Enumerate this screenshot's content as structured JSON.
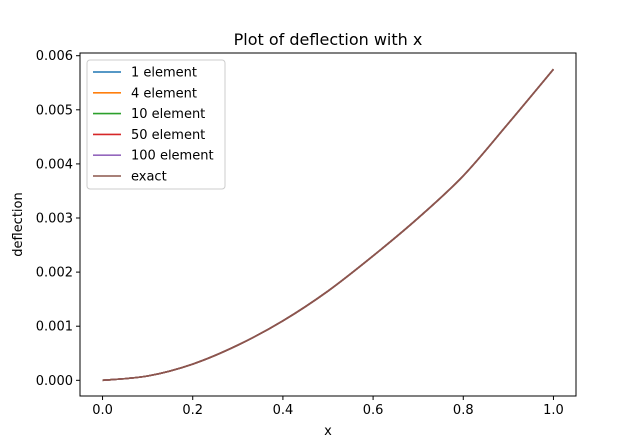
{
  "chart_data": {
    "type": "line",
    "title": "Plot of deflection with x",
    "xlabel": "x",
    "ylabel": "deflection",
    "xlim": [
      -0.05,
      1.05
    ],
    "ylim": [
      -0.00029,
      0.00605
    ],
    "grid": false,
    "legend_position": "top-left",
    "x_ticks": [
      0.0,
      0.2,
      0.4,
      0.6,
      0.8,
      1.0
    ],
    "x_tick_labels": [
      "0.0",
      "0.2",
      "0.4",
      "0.6",
      "0.8",
      "1.0"
    ],
    "y_ticks": [
      0.0,
      0.001,
      0.002,
      0.003,
      0.004,
      0.005,
      0.006
    ],
    "y_tick_labels": [
      "0.000",
      "0.001",
      "0.002",
      "0.003",
      "0.004",
      "0.005",
      "0.006"
    ],
    "x": [
      0.0,
      0.1,
      0.2,
      0.3,
      0.4,
      0.5,
      0.6,
      0.7,
      0.8,
      0.9,
      1.0
    ],
    "series": [
      {
        "name": "1 element",
        "color": "#1f77b4",
        "values": [
          0.0,
          8e-05,
          0.0003,
          0.00065,
          0.0011,
          0.00165,
          0.0023,
          0.003,
          0.00378,
          0.00475,
          0.00575
        ]
      },
      {
        "name": "4 element",
        "color": "#ff7f0e",
        "values": [
          0.0,
          8e-05,
          0.0003,
          0.00065,
          0.0011,
          0.00165,
          0.0023,
          0.003,
          0.00378,
          0.00475,
          0.00575
        ]
      },
      {
        "name": "10 element",
        "color": "#2ca02c",
        "values": [
          0.0,
          8e-05,
          0.0003,
          0.00065,
          0.0011,
          0.00165,
          0.0023,
          0.003,
          0.00378,
          0.00475,
          0.00575
        ]
      },
      {
        "name": "50 element",
        "color": "#d62728",
        "values": [
          0.0,
          8e-05,
          0.0003,
          0.00065,
          0.0011,
          0.00165,
          0.0023,
          0.003,
          0.00378,
          0.00475,
          0.00575
        ]
      },
      {
        "name": "100 element",
        "color": "#9467bd",
        "values": [
          0.0,
          8e-05,
          0.0003,
          0.00065,
          0.0011,
          0.00165,
          0.0023,
          0.003,
          0.00378,
          0.00475,
          0.00575
        ]
      },
      {
        "name": "exact",
        "color": "#8c564b",
        "values": [
          0.0,
          8e-05,
          0.0003,
          0.00065,
          0.0011,
          0.00165,
          0.0023,
          0.003,
          0.00378,
          0.00475,
          0.00575
        ]
      }
    ]
  }
}
